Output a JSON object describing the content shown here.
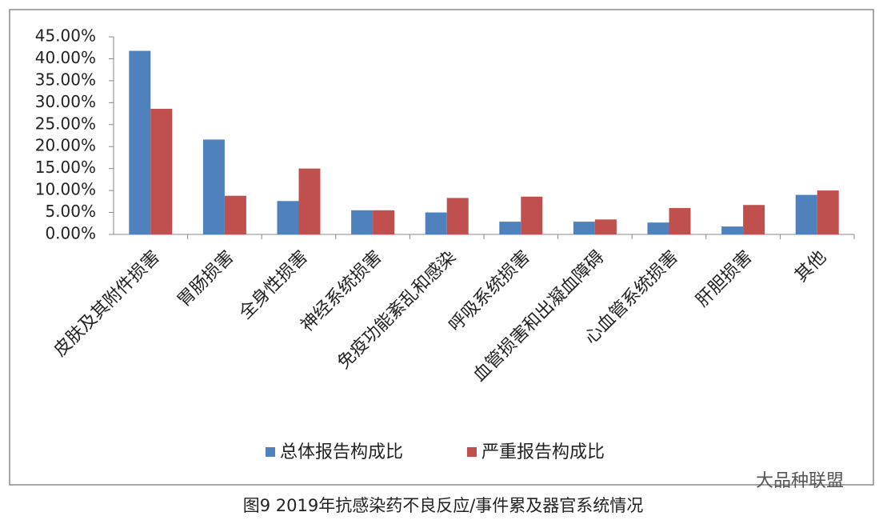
{
  "chart_data": {
    "type": "bar",
    "categories": [
      "皮肤及其附件损害",
      "胃肠损害",
      "全身性损害",
      "神经系统损害",
      "免疫功能紊乱和感染",
      "呼吸系统损害",
      "血管损害和出凝血障碍",
      "心血管系统损害",
      "肝胆损害",
      "其他"
    ],
    "series": [
      {
        "name": "总体报告构成比",
        "color": "#4f81bd",
        "values": [
          41.8,
          21.6,
          7.6,
          5.5,
          5.0,
          2.9,
          2.9,
          2.7,
          1.8,
          9.0
        ]
      },
      {
        "name": "严重报告构成比",
        "color": "#c0504d",
        "values": [
          28.6,
          8.8,
          15.0,
          5.5,
          8.3,
          8.6,
          3.4,
          6.0,
          6.7,
          10.0
        ]
      }
    ],
    "ylim": [
      0,
      45
    ],
    "yticks": [
      {
        "value": 0,
        "label": "0.00%"
      },
      {
        "value": 5,
        "label": "5.00%"
      },
      {
        "value": 10,
        "label": "10.00%"
      },
      {
        "value": 15,
        "label": "15.00%"
      },
      {
        "value": 20,
        "label": "20.00%"
      },
      {
        "value": 25,
        "label": "25.00%"
      },
      {
        "value": 30,
        "label": "30.00%"
      },
      {
        "value": 35,
        "label": "35.00%"
      },
      {
        "value": 40,
        "label": "40.00%"
      },
      {
        "value": 45,
        "label": "45.00%"
      }
    ],
    "grid": false,
    "legend": "bottom",
    "caption": "图9 2019年抗感染药不良反应/事件累及器官系统情况",
    "watermark": "大品种联盟"
  }
}
